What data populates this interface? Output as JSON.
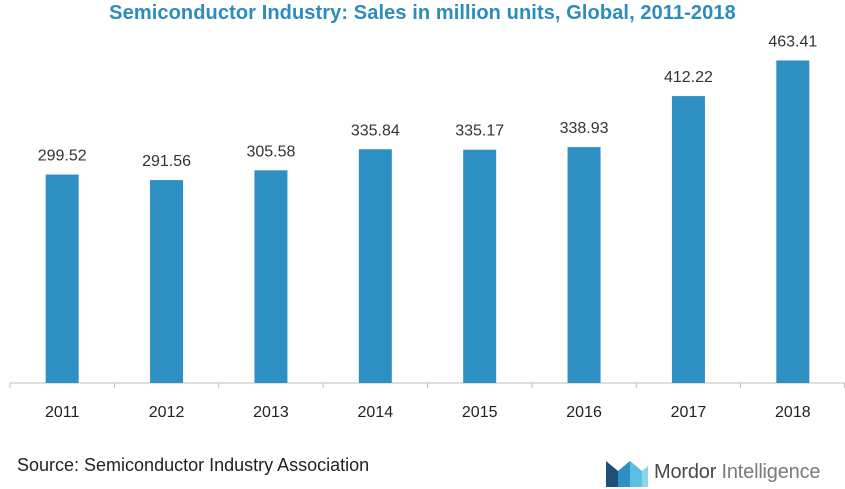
{
  "title": "Semiconductor Industry: Sales in million units, Global, 2011-2018",
  "source": "Source: Semiconductor Industry Association",
  "logo": {
    "brand": "Mordor",
    "sub": "Intelligence"
  },
  "colors": {
    "bar": "#2e8fc3",
    "title": "#2b8cbe",
    "axis": "#bfbfbf"
  },
  "chart_data": {
    "type": "bar",
    "categories": [
      "2011",
      "2012",
      "2013",
      "2014",
      "2015",
      "2016",
      "2017",
      "2018"
    ],
    "values": [
      299.52,
      291.56,
      305.58,
      335.84,
      335.17,
      338.93,
      412.22,
      463.41
    ],
    "value_labels": [
      "299.52",
      "291.56",
      "305.58",
      "335.84",
      "335.17",
      "338.93",
      "412.22",
      "463.41"
    ],
    "title": "Semiconductor Industry: Sales in million units, Global, 2011-2018",
    "xlabel": "",
    "ylabel": "",
    "ylim": [
      0,
      500
    ],
    "grid": false,
    "legend": "none"
  }
}
